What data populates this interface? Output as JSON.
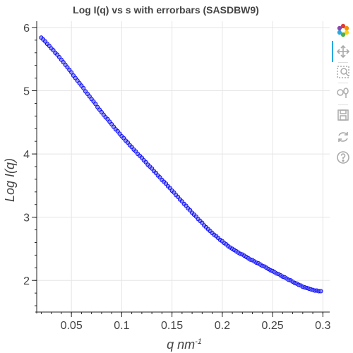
{
  "chart_data": {
    "type": "scatter",
    "title": "Log I(q) vs s with errorbars (SASDBW9)",
    "xlabel": "q",
    "xlabel_unit": "nm",
    "xlabel_unit_exp": "-1",
    "ylabel": "Log I(q)",
    "xlim": [
      0.0155,
      0.3068
    ],
    "ylim": [
      1.5,
      6.1
    ],
    "xticks": [
      0.05,
      0.1,
      0.15,
      0.2,
      0.25,
      0.3
    ],
    "xtick_labels": [
      "0.05",
      "0.1",
      "0.15",
      "0.2",
      "0.25",
      "0.3"
    ],
    "yticks": [
      2,
      3,
      4,
      5,
      6
    ],
    "ytick_labels": [
      "2",
      "3",
      "4",
      "5",
      "6"
    ],
    "grid": true,
    "marker_color": "#0000ff",
    "marker_fill": "#6b6bf0",
    "series": [
      {
        "x": [
          0.02,
          0.022,
          0.024,
          0.026,
          0.028,
          0.03,
          0.032,
          0.034,
          0.036,
          0.038,
          0.04,
          0.042,
          0.044,
          0.046,
          0.048,
          0.05,
          0.052,
          0.054,
          0.056,
          0.058,
          0.06,
          0.062,
          0.064,
          0.066,
          0.068,
          0.07,
          0.072,
          0.074,
          0.076,
          0.078,
          0.08,
          0.082,
          0.084,
          0.086,
          0.088,
          0.09,
          0.092,
          0.094,
          0.096,
          0.098,
          0.1,
          0.102,
          0.104,
          0.106,
          0.108,
          0.11,
          0.112,
          0.114,
          0.116,
          0.118,
          0.12,
          0.122,
          0.124,
          0.126,
          0.128,
          0.13,
          0.132,
          0.134,
          0.136,
          0.138,
          0.14,
          0.142,
          0.144,
          0.146,
          0.148,
          0.15,
          0.152,
          0.154,
          0.156,
          0.158,
          0.16,
          0.162,
          0.164,
          0.166,
          0.168,
          0.17,
          0.172,
          0.174,
          0.176,
          0.178,
          0.18,
          0.182,
          0.184,
          0.186,
          0.188,
          0.19,
          0.192,
          0.194,
          0.196,
          0.198,
          0.2,
          0.202,
          0.204,
          0.206,
          0.208,
          0.21,
          0.212,
          0.214,
          0.216,
          0.218,
          0.22,
          0.222,
          0.224,
          0.226,
          0.228,
          0.23,
          0.232,
          0.234,
          0.236,
          0.238,
          0.24,
          0.242,
          0.244,
          0.246,
          0.248,
          0.25,
          0.252,
          0.254,
          0.256,
          0.258,
          0.26,
          0.262,
          0.264,
          0.266,
          0.268,
          0.27,
          0.272,
          0.274,
          0.276,
          0.278,
          0.28,
          0.282,
          0.284,
          0.286,
          0.288,
          0.29,
          0.292,
          0.294,
          0.296,
          0.298
        ],
        "y": [
          5.84,
          5.81,
          5.78,
          5.74,
          5.71,
          5.67,
          5.64,
          5.6,
          5.57,
          5.53,
          5.49,
          5.45,
          5.41,
          5.37,
          5.33,
          5.29,
          5.24,
          5.2,
          5.16,
          5.12,
          5.08,
          5.04,
          4.99,
          4.95,
          4.91,
          4.87,
          4.83,
          4.79,
          4.74,
          4.7,
          4.66,
          4.62,
          4.58,
          4.55,
          4.51,
          4.47,
          4.43,
          4.39,
          4.36,
          4.32,
          4.28,
          4.25,
          4.21,
          4.18,
          4.14,
          4.11,
          4.07,
          4.04,
          4.0,
          3.97,
          3.94,
          3.9,
          3.87,
          3.83,
          3.8,
          3.77,
          3.73,
          3.7,
          3.66,
          3.63,
          3.59,
          3.56,
          3.53,
          3.49,
          3.46,
          3.42,
          3.39,
          3.35,
          3.32,
          3.28,
          3.25,
          3.21,
          3.18,
          3.14,
          3.11,
          3.07,
          3.04,
          3.01,
          2.97,
          2.94,
          2.91,
          2.87,
          2.84,
          2.81,
          2.78,
          2.75,
          2.72,
          2.7,
          2.67,
          2.64,
          2.62,
          2.59,
          2.57,
          2.54,
          2.52,
          2.5,
          2.48,
          2.46,
          2.44,
          2.42,
          2.41,
          2.39,
          2.37,
          2.35,
          2.33,
          2.32,
          2.3,
          2.28,
          2.27,
          2.25,
          2.23,
          2.22,
          2.2,
          2.18,
          2.16,
          2.15,
          2.13,
          2.11,
          2.1,
          2.08,
          2.06,
          2.05,
          2.03,
          2.01,
          2.0,
          1.98,
          1.96,
          1.95,
          1.93,
          1.92,
          1.9,
          1.89,
          1.88,
          1.87,
          1.86,
          1.85,
          1.84,
          1.84,
          1.83,
          1.83
        ]
      }
    ]
  },
  "toolbar": {
    "items": [
      {
        "icon": "bokeh-logo-icon"
      },
      {
        "icon": "pan-icon"
      },
      {
        "icon": "box-zoom-icon"
      },
      {
        "icon": "wheel-zoom-icon"
      },
      {
        "icon": "save-icon"
      },
      {
        "icon": "reset-icon"
      },
      {
        "icon": "help-icon"
      }
    ],
    "active_color": "#26aae1"
  }
}
